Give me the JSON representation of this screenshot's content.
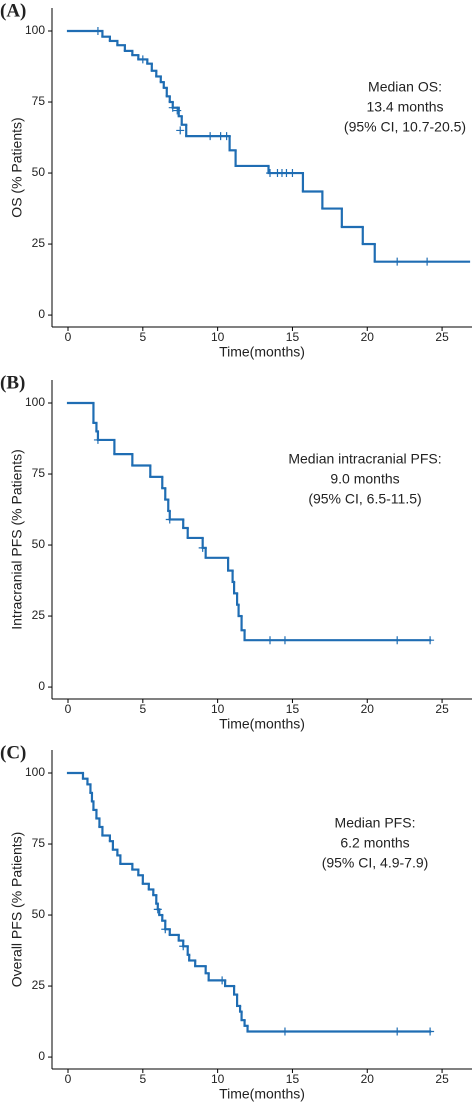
{
  "chart_data": [
    {
      "type": "step",
      "panel": "(A)",
      "xlabel": "Time(months)",
      "ylabel": "OS (% Patients)",
      "annotation": [
        "Median OS:",
        "13.4 months",
        "(95% CI, 10.7-20.5)"
      ],
      "color": "#1f6db3",
      "x": [
        0,
        2.3,
        2.8,
        3.3,
        3.8,
        4.3,
        4.7,
        5.3,
        5.6,
        5.9,
        6.2,
        6.4,
        6.6,
        6.8,
        7.0,
        7.4,
        7.6,
        7.9,
        10.8,
        11.2,
        13.4,
        15.7,
        17.0,
        18.3,
        19.7,
        20.5,
        26.8
      ],
      "values": [
        100,
        98,
        96.5,
        95,
        93,
        91.5,
        90,
        88.5,
        86,
        84,
        82,
        80,
        77,
        75,
        73,
        70,
        67,
        63,
        58,
        52.5,
        50,
        43.5,
        37.5,
        31,
        25,
        18.8,
        18.8
      ],
      "censored": {
        "x": [
          2.0,
          5.0,
          7.0,
          7.3,
          7.5,
          9.5,
          10.2,
          10.6,
          13.5,
          14.0,
          14.3,
          14.6,
          15.0,
          22.0,
          24.0
        ],
        "values": [
          100,
          90,
          73,
          72,
          65,
          63,
          63,
          63,
          50,
          50,
          50,
          50,
          50,
          18.8,
          18.8
        ]
      },
      "xlim": [
        -1.07,
        27.0
      ],
      "ylim": [
        -4.2,
        108.1
      ],
      "xticks": [
        0,
        5,
        10,
        15,
        20,
        25
      ],
      "yticks": [
        0,
        25,
        50,
        75,
        100
      ]
    },
    {
      "type": "step",
      "panel": "(B)",
      "xlabel": "Time(months)",
      "ylabel": "Intracranial PFS (% Patients)",
      "annotation": [
        "Median intracranial PFS:",
        "9.0 months",
        "(95% CI, 6.5-11.5)"
      ],
      "color": "#1f6db3",
      "x": [
        0,
        1.7,
        1.9,
        2.0,
        3.1,
        4.3,
        5.5,
        6.3,
        6.5,
        6.7,
        6.8,
        7.7,
        8.0,
        9.0,
        9.2,
        10.7,
        11.0,
        11.1,
        11.3,
        11.4,
        11.6,
        11.8,
        24.2
      ],
      "values": [
        100,
        93,
        90,
        87,
        82,
        78,
        74,
        70,
        66,
        62,
        59,
        56,
        52.5,
        49,
        45.5,
        41,
        37,
        33,
        29,
        25,
        20,
        16.5,
        16.5
      ],
      "censored": {
        "x": [
          2.0,
          6.8,
          9.0,
          13.5,
          14.5,
          22.0,
          24.2
        ],
        "values": [
          87,
          59,
          49,
          16.5,
          16.5,
          16.5,
          16.5
        ]
      },
      "xlim": [
        -1.07,
        27.0
      ],
      "ylim": [
        -4.2,
        108.1
      ],
      "xticks": [
        0,
        5,
        10,
        15,
        20,
        25
      ],
      "yticks": [
        0,
        25,
        50,
        75,
        100
      ]
    },
    {
      "type": "step",
      "panel": "(C)",
      "xlabel": "Time(months)",
      "ylabel": "Overall PFS (% Patients)",
      "annotation": [
        "Median PFS:",
        "6.2 months",
        "(95% CI, 4.9-7.9)"
      ],
      "color": "#1f6db3",
      "x": [
        0,
        1.0,
        1.3,
        1.5,
        1.6,
        1.7,
        1.9,
        2.1,
        2.3,
        2.8,
        3.0,
        3.3,
        3.5,
        4.3,
        4.7,
        5.0,
        5.4,
        5.7,
        5.9,
        6.0,
        6.1,
        6.3,
        6.5,
        6.8,
        7.4,
        7.7,
        8.0,
        8.1,
        8.5,
        9.2,
        9.4,
        10.5,
        11.1,
        11.3,
        11.5,
        11.6,
        11.8,
        12.0,
        24.2
      ],
      "values": [
        100,
        98,
        96,
        93,
        90,
        87,
        84,
        81,
        78,
        76,
        73,
        71,
        68,
        66,
        64,
        61,
        59,
        57,
        54,
        52,
        50,
        48,
        45,
        43,
        41,
        39,
        36,
        34,
        32,
        29.5,
        27,
        25,
        22,
        18,
        16,
        13,
        11,
        9,
        9
      ],
      "censored": {
        "x": [
          6.0,
          6.5,
          7.7,
          10.3,
          14.5,
          22.0,
          24.2
        ],
        "values": [
          52,
          45,
          39,
          27,
          9,
          9,
          9
        ]
      },
      "xlim": [
        -1.07,
        27.0
      ],
      "ylim": [
        -4.2,
        108.1
      ],
      "xticks": [
        0,
        5,
        10,
        15,
        20,
        25
      ],
      "yticks": [
        0,
        25,
        50,
        75,
        100
      ]
    }
  ]
}
